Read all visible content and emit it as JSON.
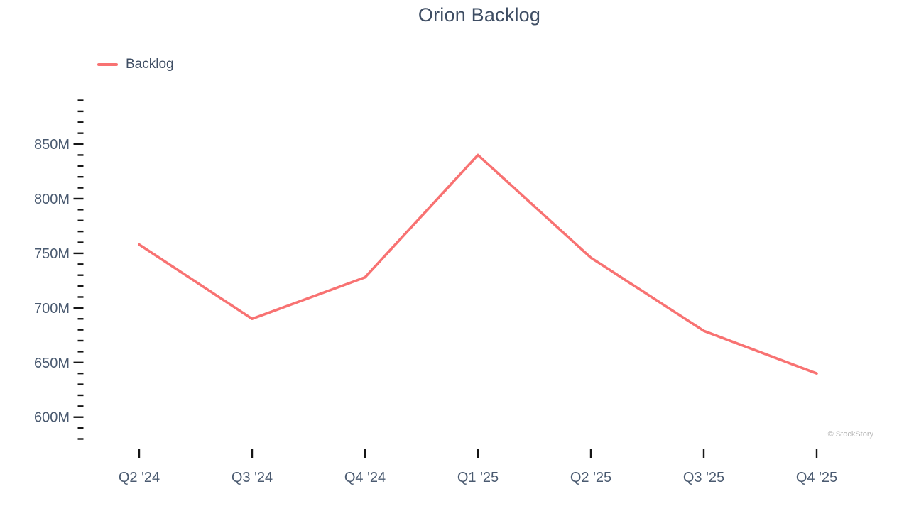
{
  "title": "Orion Backlog",
  "legend": {
    "items": [
      {
        "label": "Backlog",
        "color": "#F87272"
      }
    ]
  },
  "watermark": "© StockStory",
  "colors": {
    "background": "#FFFFFF",
    "line": "#F87272",
    "title_text": "#3E4D63",
    "axis_text": "#4A5A70",
    "tick": "#161616",
    "watermark": "#B5B5B5"
  },
  "chart_data": {
    "type": "line",
    "title": "Orion Backlog",
    "categories": [
      "Q2 '24",
      "Q3 '24",
      "Q4 '24",
      "Q1 '25",
      "Q2 '25",
      "Q3 '25",
      "Q4 '25"
    ],
    "series": [
      {
        "name": "Backlog",
        "color": "#F87272",
        "values": [
          758,
          690,
          728,
          840,
          746,
          679,
          640
        ]
      }
    ],
    "y_unit": "M",
    "ylim": [
      580,
      890
    ],
    "y_major_tick_step": 50,
    "y_minor_tick_step": 10,
    "y_major_tick_labels": [
      "600M",
      "650M",
      "700M",
      "750M",
      "800M",
      "850M"
    ],
    "grid": false,
    "axis_lines": false,
    "legend_position": "top-left",
    "xlabel": "",
    "ylabel": ""
  }
}
